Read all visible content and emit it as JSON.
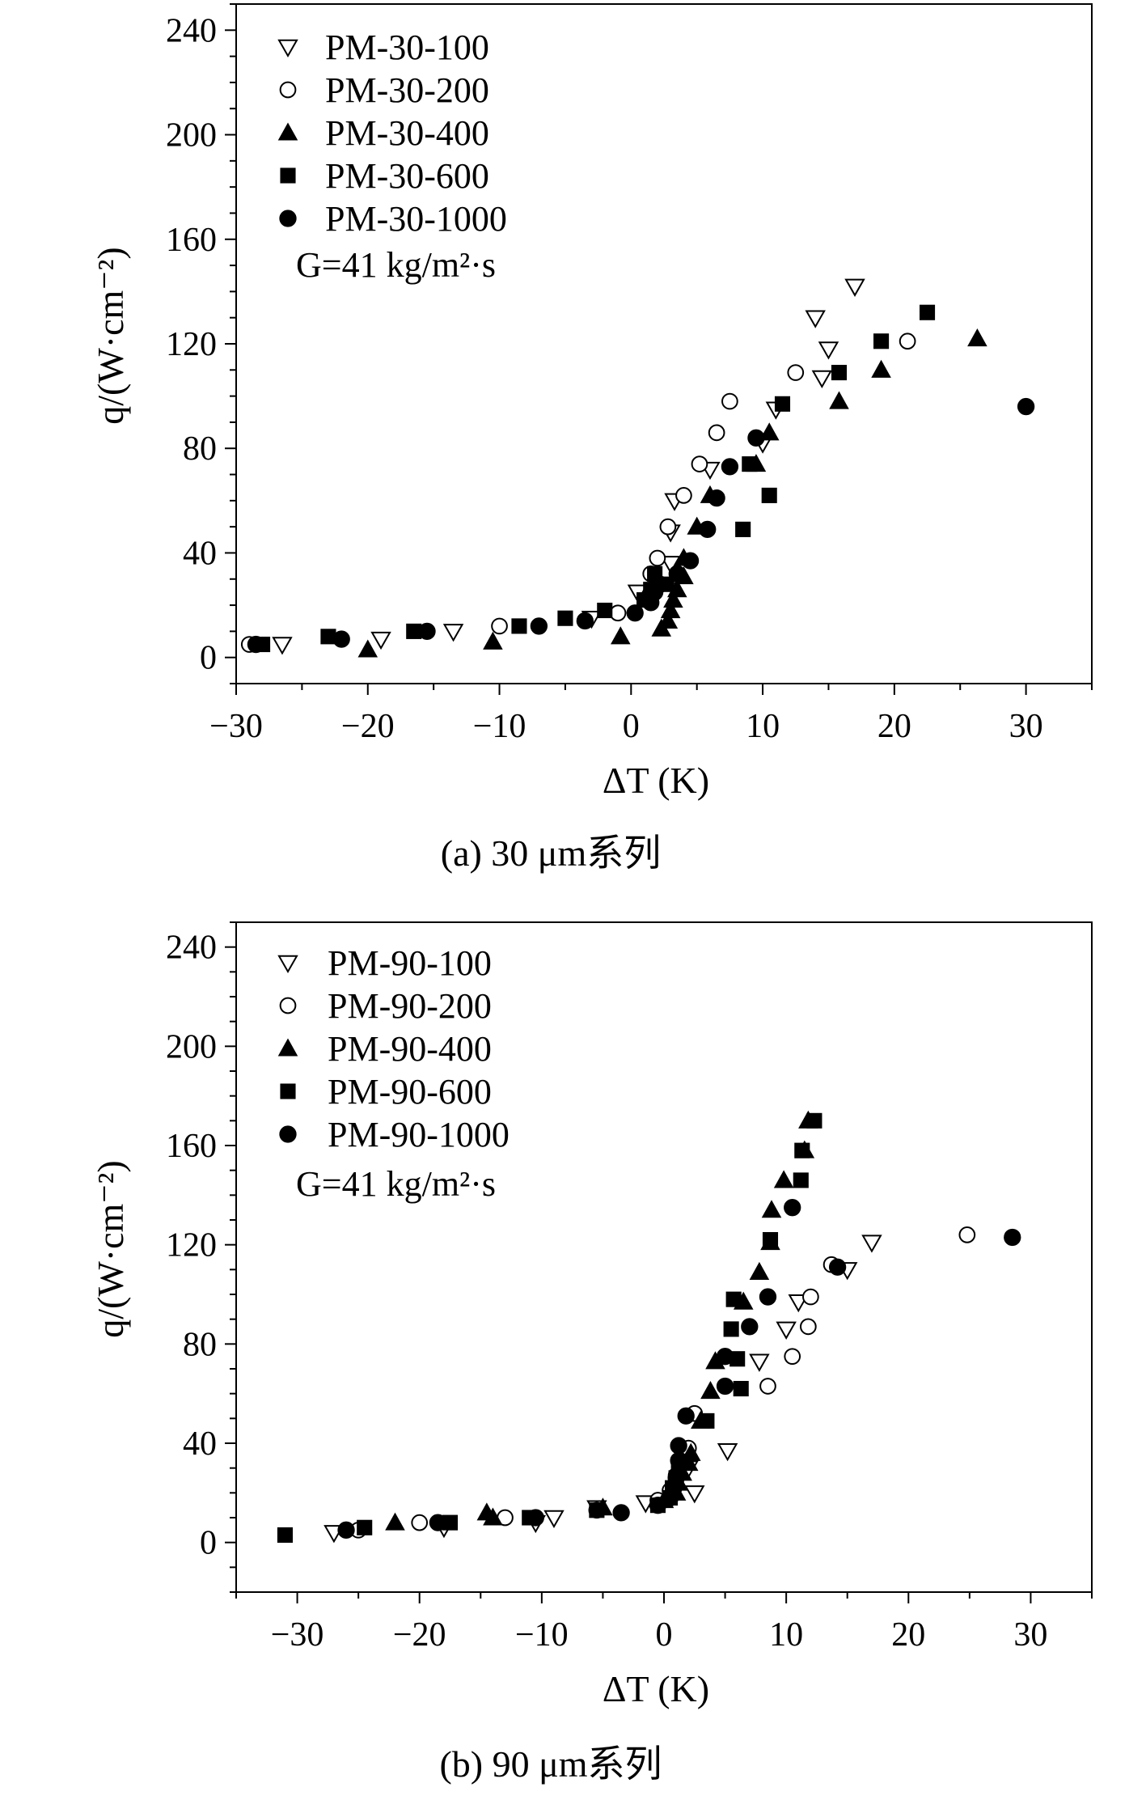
{
  "chart_data": [
    {
      "type": "scatter",
      "panel": "a",
      "caption": "(a) 30 μm系列",
      "annotation": "G=41 kg/m²·s",
      "xlabel": "ΔT (K)",
      "ylabel": "q/(W·cm⁻²)",
      "xlim": [
        -30,
        35
      ],
      "ylim": [
        -10,
        250
      ],
      "xticks": [
        -30,
        -20,
        -10,
        0,
        10,
        20,
        30
      ],
      "yticks": [
        0,
        40,
        80,
        120,
        160,
        200,
        240
      ],
      "legend_position": "top-left",
      "series": [
        {
          "name": "PM-30-100",
          "marker": "triangle-down-open",
          "points": [
            [
              -26.5,
              5
            ],
            [
              -19,
              7
            ],
            [
              -13.5,
              10
            ],
            [
              -3,
              15
            ],
            [
              0.5,
              25
            ],
            [
              3,
              36
            ],
            [
              3,
              48
            ],
            [
              3.3,
              60
            ],
            [
              6,
              72
            ],
            [
              10,
              82
            ],
            [
              11,
              95
            ],
            [
              14.5,
              107
            ],
            [
              15,
              118
            ],
            [
              14,
              130
            ],
            [
              17,
              142
            ]
          ]
        },
        {
          "name": "PM-30-200",
          "marker": "circle-open",
          "points": [
            [
              -29,
              5
            ],
            [
              -22,
              7
            ],
            [
              -10,
              12
            ],
            [
              -1,
              17
            ],
            [
              1.5,
              32
            ],
            [
              2,
              38
            ],
            [
              2.8,
              50
            ],
            [
              4,
              62
            ],
            [
              5.2,
              74
            ],
            [
              6.5,
              86
            ],
            [
              7.5,
              98
            ],
            [
              12.5,
              109
            ],
            [
              21,
              121
            ]
          ]
        },
        {
          "name": "PM-30-400",
          "marker": "triangle-up-filled",
          "points": [
            [
              -20,
              3
            ],
            [
              -10.5,
              6
            ],
            [
              -0.8,
              8
            ],
            [
              2.3,
              11
            ],
            [
              2.8,
              14
            ],
            [
              3,
              18
            ],
            [
              3.2,
              22
            ],
            [
              3.5,
              26
            ],
            [
              4,
              31
            ],
            [
              4,
              38
            ],
            [
              5,
              50
            ],
            [
              6,
              62
            ],
            [
              9.5,
              74
            ],
            [
              10.5,
              86
            ],
            [
              15.8,
              98
            ],
            [
              19,
              110
            ],
            [
              26.3,
              122
            ]
          ]
        },
        {
          "name": "PM-30-600",
          "marker": "square-filled",
          "points": [
            [
              -28,
              5
            ],
            [
              -23,
              8
            ],
            [
              -16.5,
              10
            ],
            [
              -8.5,
              12
            ],
            [
              -5,
              15
            ],
            [
              -2,
              18
            ],
            [
              1,
              22
            ],
            [
              1.5,
              26
            ],
            [
              1.8,
              32
            ],
            [
              2.7,
              28
            ],
            [
              8.5,
              49
            ],
            [
              10.5,
              62
            ],
            [
              9,
              74
            ],
            [
              11.5,
              97
            ],
            [
              15.8,
              109
            ],
            [
              19,
              121
            ],
            [
              22.5,
              132
            ]
          ]
        },
        {
          "name": "PM-30-1000",
          "marker": "circle-filled",
          "points": [
            [
              -28.5,
              5
            ],
            [
              -22,
              7
            ],
            [
              -15.5,
              10
            ],
            [
              -7,
              12
            ],
            [
              -3.5,
              14
            ],
            [
              0.3,
              17
            ],
            [
              1.5,
              21
            ],
            [
              1.8,
              25
            ],
            [
              2.2,
              28
            ],
            [
              3.5,
              32
            ],
            [
              4.5,
              37
            ],
            [
              5.8,
              49
            ],
            [
              6.5,
              61
            ],
            [
              7.5,
              73
            ],
            [
              9.5,
              84
            ],
            [
              30,
              96
            ]
          ]
        }
      ]
    },
    {
      "type": "scatter",
      "panel": "b",
      "caption": "(b) 90 μm系列",
      "annotation": "G=41 kg/m²·s",
      "xlabel": "ΔT (K)",
      "ylabel": "q/(W·cm⁻²)",
      "xlim": [
        -35,
        35
      ],
      "ylim": [
        -20,
        250
      ],
      "xticks": [
        -30,
        -20,
        -10,
        0,
        10,
        20,
        30
      ],
      "yticks": [
        0,
        40,
        80,
        120,
        160,
        200,
        240
      ],
      "legend_position": "top-left",
      "series": [
        {
          "name": "PM-90-100",
          "marker": "triangle-down-open",
          "points": [
            [
              -27,
              4
            ],
            [
              -18,
              6
            ],
            [
              -10.5,
              8
            ],
            [
              -9,
              10
            ],
            [
              -5.5,
              14
            ],
            [
              -1.5,
              16
            ],
            [
              2.5,
              20
            ],
            [
              2,
              30
            ],
            [
              5.2,
              37
            ],
            [
              7.8,
              73
            ],
            [
              10,
              86
            ],
            [
              11,
              97
            ],
            [
              15,
              110
            ],
            [
              17,
              121
            ]
          ]
        },
        {
          "name": "PM-90-200",
          "marker": "circle-open",
          "points": [
            [
              -25,
              5
            ],
            [
              -20,
              8
            ],
            [
              -13,
              10
            ],
            [
              -5.5,
              13
            ],
            [
              -0.5,
              17
            ],
            [
              0.5,
              21
            ],
            [
              1,
              27
            ],
            [
              1.5,
              32
            ],
            [
              2,
              38
            ],
            [
              2.5,
              52
            ],
            [
              8.5,
              63
            ],
            [
              10.5,
              75
            ],
            [
              11.8,
              87
            ],
            [
              12,
              99
            ],
            [
              13.7,
              112
            ],
            [
              24.8,
              124
            ]
          ]
        },
        {
          "name": "PM-90-400",
          "marker": "triangle-up-filled",
          "points": [
            [
              -22,
              8
            ],
            [
              -14.5,
              12
            ],
            [
              -14,
              10
            ],
            [
              -5,
              14
            ],
            [
              0,
              17
            ],
            [
              1,
              20
            ],
            [
              1.2,
              24
            ],
            [
              1.5,
              28
            ],
            [
              2,
              32
            ],
            [
              2.2,
              36
            ],
            [
              3,
              49
            ],
            [
              3.8,
              61
            ],
            [
              4.2,
              73
            ],
            [
              6.5,
              97
            ],
            [
              7.8,
              109
            ],
            [
              8.7,
              121
            ],
            [
              8.8,
              134
            ],
            [
              9.8,
              146
            ],
            [
              11.5,
              158
            ],
            [
              11.8,
              170
            ]
          ]
        },
        {
          "name": "PM-90-600",
          "marker": "square-filled",
          "points": [
            [
              -31,
              3
            ],
            [
              -24.5,
              6
            ],
            [
              -17.5,
              8
            ],
            [
              -11,
              10
            ],
            [
              -5.5,
              13
            ],
            [
              -0.5,
              15
            ],
            [
              0.5,
              18
            ],
            [
              0.7,
              22
            ],
            [
              1,
              26
            ],
            [
              1.2,
              30
            ],
            [
              3.5,
              49
            ],
            [
              6.3,
              62
            ],
            [
              6,
              74
            ],
            [
              5.5,
              86
            ],
            [
              5.7,
              98
            ],
            [
              8.7,
              122
            ],
            [
              11.2,
              146
            ],
            [
              11.3,
              158
            ],
            [
              12.3,
              170
            ]
          ]
        },
        {
          "name": "PM-90-1000",
          "marker": "circle-filled",
          "points": [
            [
              -26,
              5
            ],
            [
              -18.5,
              8
            ],
            [
              -10.5,
              10
            ],
            [
              -3.5,
              12
            ],
            [
              -0.5,
              15
            ],
            [
              0.5,
              18
            ],
            [
              0.8,
              22
            ],
            [
              1,
              26
            ],
            [
              1.2,
              33
            ],
            [
              1.2,
              39
            ],
            [
              1.8,
              51
            ],
            [
              5,
              63
            ],
            [
              5,
              75
            ],
            [
              7,
              87
            ],
            [
              8.5,
              99
            ],
            [
              10.5,
              135
            ],
            [
              14.2,
              111
            ],
            [
              28.5,
              123
            ]
          ]
        }
      ]
    }
  ]
}
